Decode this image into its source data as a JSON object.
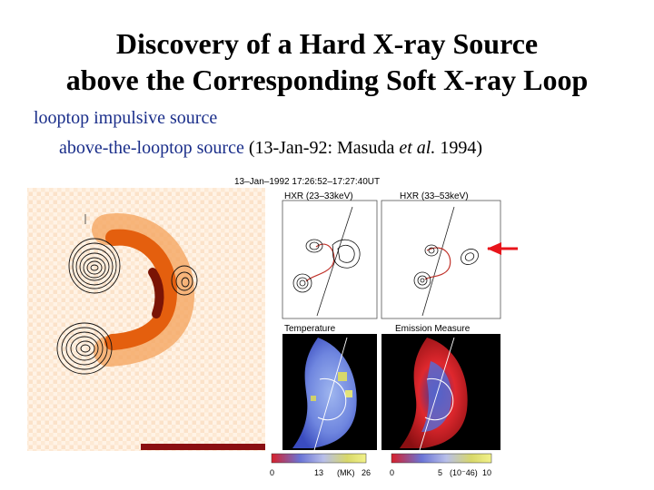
{
  "slide": {
    "title_line1": "Discovery of a Hard X-ray Source",
    "title_line2": "above the Corresponding Soft X-ray Loop",
    "bullet1": "looptop impulsive source",
    "bullet2_main": "above-the-looptop source",
    "bullet2_paren_open": " (13-Jan-92: Masuda ",
    "bullet2_etal": "et al.",
    "bullet2_paren_close": " 1994)"
  },
  "figure": {
    "header": "13–Jan–1992  17:26:52–17:27:40UT",
    "panel_hxr_low": "HXR (23–33keV)",
    "panel_hxr_high": "HXR (33–53keV)",
    "panel_temperature": "Temperature",
    "panel_emission": "Emission Measure",
    "temp_ticks": [
      "0",
      "13",
      "(MK)",
      "26"
    ],
    "em_ticks": [
      "0",
      "5",
      "(10⁻46)",
      "10"
    ],
    "colors": {
      "arrow": "#e8141b",
      "loop": "#c0322a",
      "background_orange": "#f07a1a"
    }
  }
}
